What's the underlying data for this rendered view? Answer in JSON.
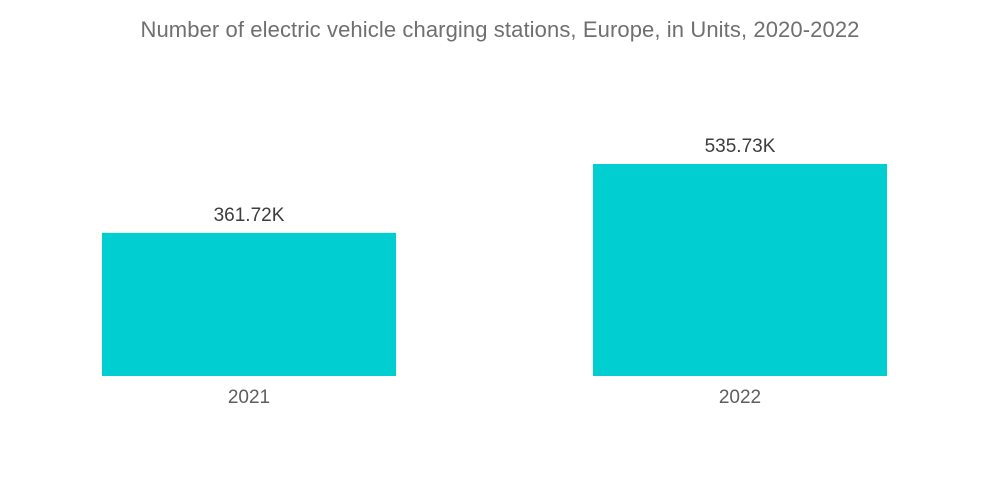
{
  "colors": {
    "bar": "#00ced1"
  },
  "chart_data": {
    "type": "bar",
    "title": "Number of electric vehicle charging stations, Europe, in Units, 2020-2022",
    "categories": [
      "2021",
      "2022"
    ],
    "values": [
      361.72,
      535.73
    ],
    "data_labels": [
      "361.72K",
      "535.73K"
    ],
    "value_unit": "K",
    "xlabel": "",
    "ylabel": "",
    "ylim": [
      0,
      620
    ],
    "grid": false,
    "legend": "none"
  }
}
